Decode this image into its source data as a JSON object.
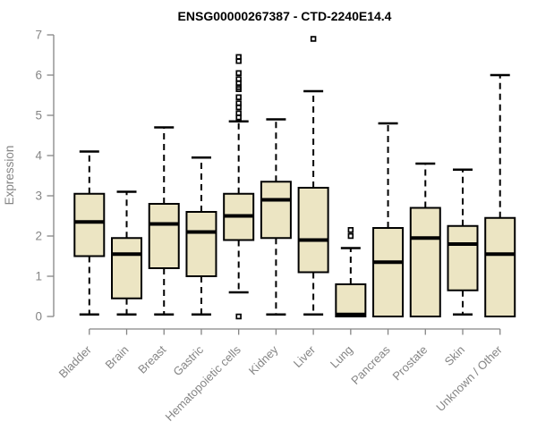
{
  "colors": {
    "box_fill": "#ece5c3",
    "box_stroke": "#000000",
    "axis": "#858585",
    "tick_label": "#858585",
    "title": "#000000",
    "background": "#ffffff"
  },
  "chart_data": {
    "type": "boxplot",
    "title": "ENSG00000267387 - CTD-2240E14.4",
    "xlabel": "",
    "ylabel": "Expression",
    "ylim": [
      0,
      7
    ],
    "yticks": [
      0,
      1,
      2,
      3,
      4,
      5,
      6,
      7
    ],
    "grid": false,
    "legend_position": "none",
    "categories": [
      "Bladder",
      "Brain",
      "Breast",
      "Gastric",
      "Hematopoietic cells",
      "Kidney",
      "Liver",
      "Lung",
      "Pancreas",
      "Prostate",
      "Skin",
      "Unknown / Other"
    ],
    "series": [
      {
        "name": "Bladder",
        "whisker_low": 0.05,
        "q1": 1.5,
        "median": 2.35,
        "q3": 3.05,
        "whisker_high": 4.1,
        "outliers": []
      },
      {
        "name": "Brain",
        "whisker_low": 0.05,
        "q1": 0.45,
        "median": 1.55,
        "q3": 1.95,
        "whisker_high": 3.1,
        "outliers": []
      },
      {
        "name": "Breast",
        "whisker_low": 0.05,
        "q1": 1.2,
        "median": 2.3,
        "q3": 2.8,
        "whisker_high": 4.7,
        "outliers": []
      },
      {
        "name": "Gastric",
        "whisker_low": 0.05,
        "q1": 1.0,
        "median": 2.1,
        "q3": 2.6,
        "whisker_high": 3.95,
        "outliers": []
      },
      {
        "name": "Hematopoietic cells",
        "whisker_low": 0.6,
        "q1": 1.9,
        "median": 2.5,
        "q3": 3.05,
        "whisker_high": 4.85,
        "outliers": [
          6.45,
          6.35,
          6.05,
          5.9,
          5.8,
          5.7,
          5.65,
          5.45,
          5.3,
          5.2,
          5.05,
          4.95,
          0.0
        ]
      },
      {
        "name": "Kidney",
        "whisker_low": 0.05,
        "q1": 1.95,
        "median": 2.9,
        "q3": 3.35,
        "whisker_high": 4.9,
        "outliers": []
      },
      {
        "name": "Liver",
        "whisker_low": 0.05,
        "q1": 1.1,
        "median": 1.9,
        "q3": 3.2,
        "whisker_high": 5.6,
        "outliers": [
          6.9
        ]
      },
      {
        "name": "Lung",
        "whisker_low": 0.0,
        "q1": 0.0,
        "median": 0.05,
        "q3": 0.8,
        "whisker_high": 1.7,
        "outliers": [
          2.0,
          2.15
        ]
      },
      {
        "name": "Pancreas",
        "whisker_low": 0.0,
        "q1": 0.0,
        "median": 1.35,
        "q3": 2.2,
        "whisker_high": 4.8,
        "outliers": []
      },
      {
        "name": "Prostate",
        "whisker_low": 0.0,
        "q1": 0.0,
        "median": 1.95,
        "q3": 2.7,
        "whisker_high": 3.8,
        "outliers": []
      },
      {
        "name": "Skin",
        "whisker_low": 0.05,
        "q1": 0.65,
        "median": 1.8,
        "q3": 2.25,
        "whisker_high": 3.65,
        "outliers": []
      },
      {
        "name": "Unknown / Other",
        "whisker_low": 0.0,
        "q1": 0.0,
        "median": 1.55,
        "q3": 2.45,
        "whisker_high": 6.0,
        "outliers": []
      }
    ]
  }
}
